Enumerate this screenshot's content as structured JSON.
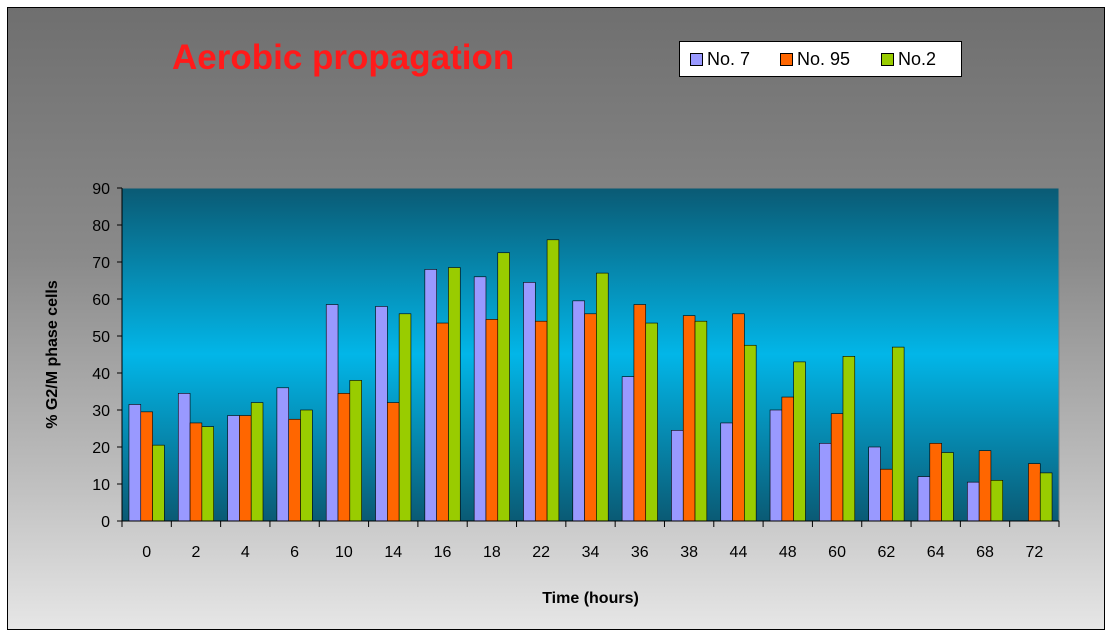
{
  "chart_data": {
    "type": "bar",
    "title": "Aerobic propagation",
    "xlabel": "Time (hours)",
    "ylabel": "% G2/M phase cells",
    "categories": [
      "0",
      "2",
      "4",
      "6",
      "10",
      "14",
      "16",
      "18",
      "22",
      "34",
      "36",
      "38",
      "44",
      "48",
      "60",
      "62",
      "64",
      "68",
      "72"
    ],
    "series": [
      {
        "name": "No. 7",
        "color": "#9999ff",
        "values": [
          31.5,
          34.5,
          28.5,
          36,
          58.5,
          58,
          68,
          66,
          64.5,
          59.5,
          39,
          24.5,
          26.5,
          30,
          21,
          20,
          12,
          10.5,
          null
        ]
      },
      {
        "name": "No. 95",
        "color": "#ff6600",
        "values": [
          29.5,
          26.5,
          28.5,
          27.5,
          34.5,
          32,
          53.5,
          54.5,
          54,
          56,
          58.5,
          55.5,
          56,
          33.5,
          29,
          14,
          21,
          19,
          15.5
        ]
      },
      {
        "name": "No.2",
        "color": "#99cc00",
        "values": [
          20.5,
          25.5,
          32,
          30,
          38,
          56,
          68.5,
          72.5,
          76,
          67,
          53.5,
          54,
          47.5,
          43,
          44.5,
          47,
          18.5,
          11,
          13
        ]
      }
    ],
    "ylim": [
      0,
      90
    ],
    "yticks": [
      0,
      10,
      20,
      30,
      40,
      50,
      60,
      70,
      80,
      90
    ],
    "grid": false,
    "legend_position": "top-right"
  }
}
